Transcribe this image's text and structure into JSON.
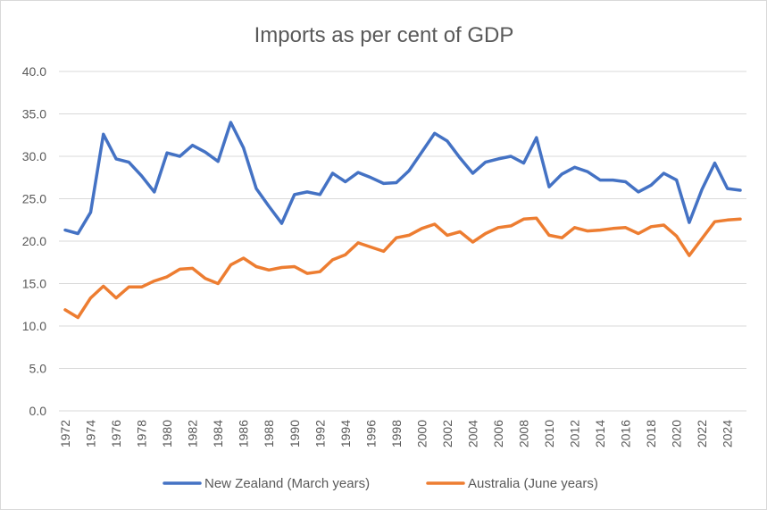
{
  "chart_data": {
    "type": "line",
    "title": "Imports as per cent of GDP",
    "xlabel": "",
    "ylabel": "",
    "ylim": [
      0,
      40
    ],
    "y_ticks": [
      "0.0",
      "5.0",
      "10.0",
      "15.0",
      "20.0",
      "25.0",
      "30.0",
      "35.0",
      "40.0"
    ],
    "x_tick_labels": [
      "1972",
      "1974",
      "1976",
      "1978",
      "1980",
      "1982",
      "1984",
      "1986",
      "1988",
      "1990",
      "1992",
      "1994",
      "1996",
      "1998",
      "2000",
      "2002",
      "2004",
      "2006",
      "2008",
      "2010",
      "2012",
      "2014",
      "2016",
      "2018",
      "2020",
      "2022",
      "2024"
    ],
    "grid": true,
    "legend_position": "bottom",
    "x": [
      1972,
      1973,
      1974,
      1975,
      1976,
      1977,
      1978,
      1979,
      1980,
      1981,
      1982,
      1983,
      1984,
      1985,
      1986,
      1987,
      1988,
      1989,
      1990,
      1991,
      1992,
      1993,
      1994,
      1995,
      1996,
      1997,
      1998,
      1999,
      2000,
      2001,
      2002,
      2003,
      2004,
      2005,
      2006,
      2007,
      2008,
      2009,
      2010,
      2011,
      2012,
      2013,
      2014,
      2015,
      2016,
      2017,
      2018,
      2019,
      2020,
      2021,
      2022,
      2023,
      2024,
      2025
    ],
    "series": [
      {
        "name": "New Zealand (March years)",
        "color": "#4472c4",
        "values": [
          21.3,
          20.9,
          23.4,
          32.6,
          29.7,
          29.3,
          27.7,
          25.8,
          30.4,
          30.0,
          31.3,
          30.5,
          29.4,
          34.0,
          31.0,
          26.2,
          24.1,
          22.1,
          25.5,
          25.8,
          25.5,
          28.0,
          27.0,
          28.1,
          27.5,
          26.8,
          26.9,
          28.3,
          30.5,
          32.7,
          31.8,
          29.8,
          28.0,
          29.3,
          29.7,
          30.0,
          29.2,
          32.2,
          26.4,
          27.9,
          28.7,
          28.2,
          27.2,
          27.2,
          27.0,
          25.8,
          26.6,
          28.0,
          27.2,
          22.2,
          26.1,
          29.2,
          26.2,
          26.0
        ]
      },
      {
        "name": "Australia (June years)",
        "color": "#ed7d31",
        "values": [
          11.9,
          11.0,
          13.3,
          14.7,
          13.3,
          14.6,
          14.6,
          15.3,
          15.8,
          16.7,
          16.8,
          15.6,
          15.0,
          17.2,
          18.0,
          17.0,
          16.6,
          16.9,
          17.0,
          16.2,
          16.4,
          17.8,
          18.4,
          19.8,
          19.3,
          18.8,
          20.4,
          20.7,
          21.5,
          22.0,
          20.7,
          21.1,
          19.9,
          20.9,
          21.6,
          21.8,
          22.6,
          22.7,
          20.7,
          20.4,
          21.6,
          21.2,
          21.3,
          21.5,
          21.6,
          20.9,
          21.7,
          21.9,
          20.6,
          18.3,
          20.3,
          22.3,
          22.5,
          22.6
        ]
      }
    ]
  }
}
